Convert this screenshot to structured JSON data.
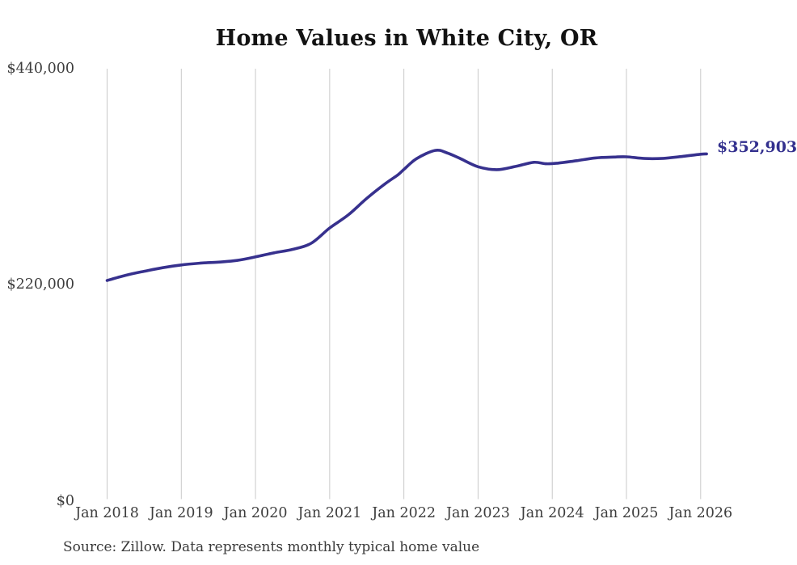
{
  "title": "Home Values in White City, OR",
  "source_note": "Source: Zillow. Data represents monthly typical home value",
  "end_label": "$352,903",
  "colors": {
    "line": "#37318e",
    "end_label": "#33308e",
    "grid": "#c9c9c9",
    "title": "#121212",
    "tick_text": "#3d3d3d",
    "source_text": "#3a3a3a",
    "background": "#ffffff"
  },
  "chart_data": {
    "type": "line",
    "title": "Home Values in White City, OR",
    "xlabel": "",
    "ylabel": "",
    "grid": "vertical-only",
    "legend": "none",
    "xlim": [
      2018,
      2026
    ],
    "ylim": [
      0,
      440000
    ],
    "y_ticks": [
      {
        "value": 440000,
        "label": "$440,000"
      },
      {
        "value": 220000,
        "label": "$220,000"
      },
      {
        "value": 0,
        "label": "$0"
      }
    ],
    "x_ticks": [
      {
        "x": 2018,
        "label": "Jan 2018"
      },
      {
        "x": 2019,
        "label": "Jan 2019"
      },
      {
        "x": 2020,
        "label": "Jan 2020"
      },
      {
        "x": 2021,
        "label": "Jan 2021"
      },
      {
        "x": 2022,
        "label": "Jan 2022"
      },
      {
        "x": 2023,
        "label": "Jan 2023"
      },
      {
        "x": 2024,
        "label": "Jan 2024"
      },
      {
        "x": 2025,
        "label": "Jan 2025"
      },
      {
        "x": 2026,
        "label": "Jan 2026"
      }
    ],
    "final_value": 352903,
    "final_value_label": "$352,903",
    "series": [
      {
        "name": "Monthly typical home value",
        "points": [
          [
            2018.0,
            223500
          ],
          [
            2018.25,
            228800
          ],
          [
            2018.5,
            232900
          ],
          [
            2018.75,
            236600
          ],
          [
            2019.0,
            239400
          ],
          [
            2019.25,
            241200
          ],
          [
            2019.5,
            242300
          ],
          [
            2019.75,
            244000
          ],
          [
            2020.0,
            247600
          ],
          [
            2020.25,
            251800
          ],
          [
            2020.5,
            255300
          ],
          [
            2020.75,
            261500
          ],
          [
            2021.0,
            277200
          ],
          [
            2021.25,
            290500
          ],
          [
            2021.5,
            307500
          ],
          [
            2021.75,
            322500
          ],
          [
            2021.92,
            331500
          ],
          [
            2022.0,
            337000
          ],
          [
            2022.17,
            348000
          ],
          [
            2022.42,
            356500
          ],
          [
            2022.58,
            354000
          ],
          [
            2022.75,
            348500
          ],
          [
            2023.0,
            339800
          ],
          [
            2023.25,
            336800
          ],
          [
            2023.5,
            340000
          ],
          [
            2023.75,
            344300
          ],
          [
            2023.92,
            342800
          ],
          [
            2024.08,
            343500
          ],
          [
            2024.33,
            346000
          ],
          [
            2024.58,
            348800
          ],
          [
            2024.83,
            349700
          ],
          [
            2025.0,
            349900
          ],
          [
            2025.25,
            348200
          ],
          [
            2025.5,
            348400
          ],
          [
            2025.75,
            350300
          ],
          [
            2026.0,
            352600
          ],
          [
            2026.08,
            352903
          ]
        ]
      }
    ]
  }
}
